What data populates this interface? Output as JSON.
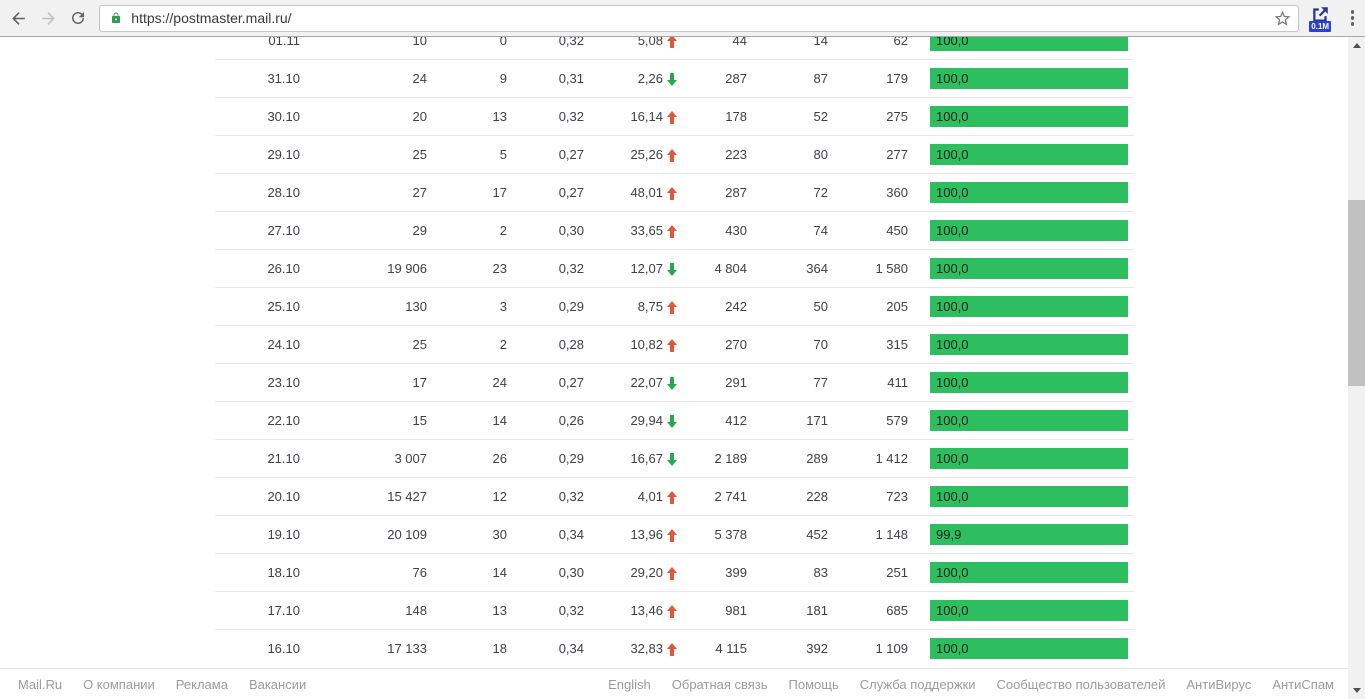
{
  "browser": {
    "url": "https://postmaster.mail.ru/",
    "extension_badge": "0.1M"
  },
  "colors": {
    "bar_green": "#2dbe60",
    "arrow_up_red": "#e2573c",
    "arrow_down_green": "#2aa84e",
    "lock_green": "#2b9e4b",
    "extension_blue": "#283593",
    "badge_blue": "#2f3fd0"
  },
  "table": {
    "rows": [
      {
        "date": "01.11",
        "v1": "10",
        "v2": "0",
        "v3": "0,32",
        "delta": "5,08",
        "delta_dir": "up",
        "v4": "44",
        "v5": "14",
        "v6": "62",
        "bar_label": "100,0",
        "bar_value": 100.0
      },
      {
        "date": "31.10",
        "v1": "24",
        "v2": "9",
        "v3": "0,31",
        "delta": "2,26",
        "delta_dir": "down",
        "v4": "287",
        "v5": "87",
        "v6": "179",
        "bar_label": "100,0",
        "bar_value": 100.0
      },
      {
        "date": "30.10",
        "v1": "20",
        "v2": "13",
        "v3": "0,32",
        "delta": "16,14",
        "delta_dir": "up",
        "v4": "178",
        "v5": "52",
        "v6": "275",
        "bar_label": "100,0",
        "bar_value": 100.0
      },
      {
        "date": "29.10",
        "v1": "25",
        "v2": "5",
        "v3": "0,27",
        "delta": "25,26",
        "delta_dir": "up",
        "v4": "223",
        "v5": "80",
        "v6": "277",
        "bar_label": "100,0",
        "bar_value": 100.0
      },
      {
        "date": "28.10",
        "v1": "27",
        "v2": "17",
        "v3": "0,27",
        "delta": "48,01",
        "delta_dir": "up",
        "v4": "287",
        "v5": "72",
        "v6": "360",
        "bar_label": "100,0",
        "bar_value": 100.0
      },
      {
        "date": "27.10",
        "v1": "29",
        "v2": "2",
        "v3": "0,30",
        "delta": "33,65",
        "delta_dir": "up",
        "v4": "430",
        "v5": "74",
        "v6": "450",
        "bar_label": "100,0",
        "bar_value": 100.0
      },
      {
        "date": "26.10",
        "v1": "19 906",
        "v2": "23",
        "v3": "0,32",
        "delta": "12,07",
        "delta_dir": "down",
        "v4": "4 804",
        "v5": "364",
        "v6": "1 580",
        "bar_label": "100,0",
        "bar_value": 100.0
      },
      {
        "date": "25.10",
        "v1": "130",
        "v2": "3",
        "v3": "0,29",
        "delta": "8,75",
        "delta_dir": "up",
        "v4": "242",
        "v5": "50",
        "v6": "205",
        "bar_label": "100,0",
        "bar_value": 100.0
      },
      {
        "date": "24.10",
        "v1": "25",
        "v2": "2",
        "v3": "0,28",
        "delta": "10,82",
        "delta_dir": "up",
        "v4": "270",
        "v5": "70",
        "v6": "315",
        "bar_label": "100,0",
        "bar_value": 100.0
      },
      {
        "date": "23.10",
        "v1": "17",
        "v2": "24",
        "v3": "0,27",
        "delta": "22,07",
        "delta_dir": "down",
        "v4": "291",
        "v5": "77",
        "v6": "411",
        "bar_label": "100,0",
        "bar_value": 100.0
      },
      {
        "date": "22.10",
        "v1": "15",
        "v2": "14",
        "v3": "0,26",
        "delta": "29,94",
        "delta_dir": "down",
        "v4": "412",
        "v5": "171",
        "v6": "579",
        "bar_label": "100,0",
        "bar_value": 100.0
      },
      {
        "date": "21.10",
        "v1": "3 007",
        "v2": "26",
        "v3": "0,29",
        "delta": "16,67",
        "delta_dir": "down",
        "v4": "2 189",
        "v5": "289",
        "v6": "1 412",
        "bar_label": "100,0",
        "bar_value": 100.0
      },
      {
        "date": "20.10",
        "v1": "15 427",
        "v2": "12",
        "v3": "0,32",
        "delta": "4,01",
        "delta_dir": "up",
        "v4": "2 741",
        "v5": "228",
        "v6": "723",
        "bar_label": "100,0",
        "bar_value": 100.0
      },
      {
        "date": "19.10",
        "v1": "20 109",
        "v2": "30",
        "v3": "0,34",
        "delta": "13,96",
        "delta_dir": "up",
        "v4": "5 378",
        "v5": "452",
        "v6": "1 148",
        "bar_label": "99,9",
        "bar_value": 99.9
      },
      {
        "date": "18.10",
        "v1": "76",
        "v2": "14",
        "v3": "0,30",
        "delta": "29,20",
        "delta_dir": "up",
        "v4": "399",
        "v5": "83",
        "v6": "251",
        "bar_label": "100,0",
        "bar_value": 100.0
      },
      {
        "date": "17.10",
        "v1": "148",
        "v2": "13",
        "v3": "0,32",
        "delta": "13,46",
        "delta_dir": "up",
        "v4": "981",
        "v5": "181",
        "v6": "685",
        "bar_label": "100,0",
        "bar_value": 100.0
      },
      {
        "date": "16.10",
        "v1": "17 133",
        "v2": "18",
        "v3": "0,34",
        "delta": "32,83",
        "delta_dir": "up",
        "v4": "4 115",
        "v5": "392",
        "v6": "1 109",
        "bar_label": "100,0",
        "bar_value": 100.0
      }
    ]
  },
  "footer": {
    "left_links": [
      "Mail.Ru",
      "О компании",
      "Реклама",
      "Вакансии"
    ],
    "right_links": [
      "English",
      "Обратная связь",
      "Помощь",
      "Служба поддержки",
      "Сообщество пользователей",
      "АнтиВирус",
      "АнтиСпам"
    ]
  }
}
